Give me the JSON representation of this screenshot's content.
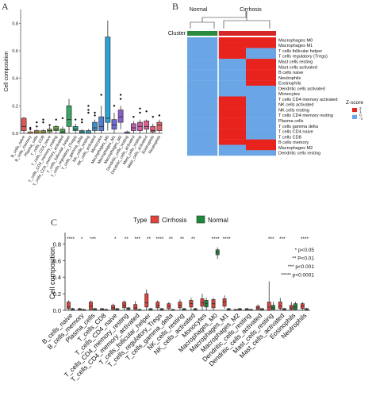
{
  "panels": {
    "a": "A",
    "b": "B",
    "c": "C"
  },
  "colors": {
    "cirrhosis": "#e0433a",
    "normal": "#1c8a3a",
    "heat_high": "#e8231e",
    "heat_low": "#6aa6e6",
    "heat_mid": "#f5f0f0",
    "cluster_normal": "#2b8a3e",
    "cluster_cirrhosis": "#d62728"
  },
  "chart_data": [
    {
      "type": "box",
      "panel": "A",
      "ylabel": "Cell composition",
      "ylim": [
        0,
        0.9
      ],
      "yticks": [
        "0.0",
        "0.2",
        "0.4",
        "0.6",
        "0.8"
      ],
      "categories": [
        "B_cells_naive",
        "B_cells_memory",
        "Plasma_cells",
        "T_cells_CD8",
        "T_cells_CD4_naive",
        "T_cells_CD4_memory_resting",
        "T_cells_CD4_memory_activated",
        "T_cells_follicular_helper",
        "T_cells_regulatory_(Tregs)",
        "T_cells_gamma_delta",
        "NK_cells_resting",
        "NK_cells_activated",
        "Monocytes",
        "Macrophages_M0",
        "Macrophages_M1",
        "Macrophages_M2",
        "Dendritic_cells_resting",
        "Dendritic_cells_activated",
        "Mast_cells_resting",
        "Mast_cells_activated",
        "Eosinophils",
        "Neutrophils"
      ],
      "box_colors": [
        "#e15759",
        "#e8a33d",
        "#c9a227",
        "#b5b53a",
        "#8fb83c",
        "#5fae3f",
        "#3da04a",
        "#3aa564",
        "#2ea887",
        "#2aa7a5",
        "#2f9fc0",
        "#3b8fd0",
        "#4f80d6",
        "#2aa2d6",
        "#6b6bd6",
        "#8b5fd1",
        "#a55bc8",
        "#c05bb8",
        "#d45aa5",
        "#e05b90",
        "#e35b78",
        "#e0626a"
      ],
      "boxes": [
        {
          "whislo": 0.0,
          "q1": 0.02,
          "med": 0.05,
          "q3": 0.11,
          "whishi": 0.12,
          "outliers": []
        },
        {
          "whislo": 0.0,
          "q1": 0.0,
          "med": 0.0,
          "q3": 0.01,
          "whishi": 0.02,
          "outliers": [
            0.03,
            0.04
          ]
        },
        {
          "whislo": 0.0,
          "q1": 0.0,
          "med": 0.01,
          "q3": 0.02,
          "whishi": 0.03,
          "outliers": [
            0.05,
            0.08
          ]
        },
        {
          "whislo": 0.0,
          "q1": 0.0,
          "med": 0.01,
          "q3": 0.02,
          "whishi": 0.03,
          "outliers": [
            0.08,
            0.1
          ]
        },
        {
          "whislo": 0.0,
          "q1": 0.01,
          "med": 0.02,
          "q3": 0.03,
          "whishi": 0.05,
          "outliers": [
            0.06
          ]
        },
        {
          "whislo": 0.0,
          "q1": 0.02,
          "med": 0.03,
          "q3": 0.05,
          "whishi": 0.06,
          "outliers": [
            0.1
          ]
        },
        {
          "whislo": 0.0,
          "q1": 0.0,
          "med": 0.01,
          "q3": 0.03,
          "whishi": 0.05,
          "outliers": [
            0.11
          ]
        },
        {
          "whislo": 0.0,
          "q1": 0.05,
          "med": 0.1,
          "q3": 0.2,
          "whishi": 0.25,
          "outliers": []
        },
        {
          "whislo": 0.0,
          "q1": 0.02,
          "med": 0.03,
          "q3": 0.05,
          "whishi": 0.07,
          "outliers": [
            0.1
          ]
        },
        {
          "whislo": 0.0,
          "q1": 0.0,
          "med": 0.01,
          "q3": 0.02,
          "whishi": 0.03,
          "outliers": [
            0.08,
            0.1
          ]
        },
        {
          "whislo": 0.0,
          "q1": 0.0,
          "med": 0.0,
          "q3": 0.02,
          "whishi": 0.03,
          "outliers": [
            0.15,
            0.17,
            0.2
          ]
        },
        {
          "whislo": 0.0,
          "q1": 0.02,
          "med": 0.04,
          "q3": 0.08,
          "whishi": 0.1,
          "outliers": [
            0.13,
            0.15
          ]
        },
        {
          "whislo": 0.0,
          "q1": 0.02,
          "med": 0.05,
          "q3": 0.12,
          "whishi": 0.2,
          "outliers": [
            0.28
          ]
        },
        {
          "whislo": 0.02,
          "q1": 0.08,
          "med": 0.11,
          "q3": 0.7,
          "whishi": 0.82,
          "outliers": []
        },
        {
          "whislo": 0.0,
          "q1": 0.03,
          "med": 0.06,
          "q3": 0.1,
          "whishi": 0.15,
          "outliers": [
            0.2
          ]
        },
        {
          "whislo": 0.03,
          "q1": 0.08,
          "med": 0.12,
          "q3": 0.17,
          "whishi": 0.2,
          "outliers": [
            0.25,
            0.28
          ]
        },
        {
          "whislo": 0.0,
          "q1": 0.0,
          "med": 0.0,
          "q3": 0.01,
          "whishi": 0.02,
          "outliers": []
        },
        {
          "whislo": 0.0,
          "q1": 0.02,
          "med": 0.04,
          "q3": 0.07,
          "whishi": 0.09,
          "outliers": [
            0.12
          ]
        },
        {
          "whislo": 0.0,
          "q1": 0.02,
          "med": 0.05,
          "q3": 0.08,
          "whishi": 0.1,
          "outliers": [
            0.15,
            0.18
          ]
        },
        {
          "whislo": 0.0,
          "q1": 0.03,
          "med": 0.05,
          "q3": 0.09,
          "whishi": 0.1,
          "outliers": [
            0.16
          ]
        },
        {
          "whislo": 0.0,
          "q1": 0.01,
          "med": 0.02,
          "q3": 0.05,
          "whishi": 0.07,
          "outliers": [
            0.12
          ]
        },
        {
          "whislo": 0.0,
          "q1": 0.02,
          "med": 0.06,
          "q3": 0.08,
          "whishi": 0.1,
          "outliers": [
            0.13
          ]
        }
      ]
    },
    {
      "type": "heatmap",
      "panel": "B",
      "column_groups": [
        "Normal",
        "Cirrhosis"
      ],
      "annotation_label": "Cluster",
      "legend_title": "Z-score",
      "legend_ticks": [
        "2",
        "1",
        "0",
        "-1"
      ],
      "rows": [
        "Macrophages M0",
        "Macrophages M1",
        "T cells follicular helper",
        "T cells regulatory (Tregs)",
        "Mast cells resting",
        "Mast cells activated",
        "B cells naive",
        "Neutrophils",
        "Eosinophils",
        "Dendritic cells activated",
        "Monocytes",
        "T cells CD4 memory activated",
        "NK cells activated",
        "NK cells resting",
        "T cells CD4 memory resting",
        "Plasma cells",
        "T cells gamma delta",
        "T cells CD4 naive",
        "T cells CD8",
        "B cells memory",
        "Macrophages M2",
        "Dendritic cells resting"
      ],
      "row_zscore_normal": [
        -1,
        -1,
        -1,
        -1,
        -1,
        -1,
        -1,
        -1,
        -1,
        -1,
        -1,
        -1,
        -1,
        -1,
        -1,
        -1,
        -1,
        -1,
        -1,
        -1,
        -1,
        -1
      ],
      "row_zscore_cirrhosis_left": [
        2,
        2,
        2,
        2,
        -1,
        -1,
        -1,
        -1,
        -1,
        -1,
        -1,
        2,
        2,
        2,
        2,
        2,
        2,
        2,
        2,
        2,
        -1,
        -1
      ],
      "row_zscore_cirrhosis_right": [
        2,
        2,
        -1,
        -1,
        2,
        2,
        2,
        2,
        2,
        -1,
        -1,
        -1,
        -1,
        -1,
        -1,
        -1,
        -1,
        -1,
        -1,
        2,
        2,
        -1
      ]
    },
    {
      "type": "box",
      "panel": "C",
      "ylabel": "Cell composition",
      "ylim": [
        0,
        0.9
      ],
      "yticks": [
        "0.0",
        "0.2",
        "0.4",
        "0.6",
        "0.8"
      ],
      "legend_title": "Type",
      "series": [
        {
          "name": "Cirrhosis"
        },
        {
          "name": "Normal"
        }
      ],
      "categories": [
        "B_cells_naive",
        "B_cells_memory",
        "Plasma_cells",
        "T_cells_CD8",
        "T_cells_CD4_naive",
        "T_cells_CD4_memory_resting",
        "T_cells_CD4_memory_activated",
        "T_cells_follicular_helper",
        "T_cells_regulatory_Tregs",
        "T_cells_gamma_delta",
        "NK_cells_resting",
        "NK_cells_activated",
        "Monocytes",
        "Macrophages_M0",
        "Macrophages_M1",
        "Macrophages_M2",
        "Dendritic_cells_resting",
        "Dendritic_cells_activated",
        "Mast_cells_resting",
        "Mast_cells_activated",
        "Eosinophils",
        "Neutrophils"
      ],
      "significance": [
        "****",
        "*",
        "***",
        "",
        "*",
        "**",
        "***",
        "**",
        "****",
        "**",
        "**",
        "**",
        "",
        "****",
        "****",
        "",
        "",
        "",
        "***",
        "***",
        "",
        "****"
      ],
      "sig_legend": [
        "* p<0.05",
        "** P<0.01",
        "*** p<0.001",
        "***** p<0.0001"
      ],
      "cirrhosis_boxes": [
        {
          "whislo": 0.0,
          "q1": 0.02,
          "med": 0.04,
          "q3": 0.1,
          "whishi": 0.12
        },
        {
          "whislo": 0.0,
          "q1": 0.0,
          "med": 0.01,
          "q3": 0.02,
          "whishi": 0.03
        },
        {
          "whislo": 0.0,
          "q1": 0.01,
          "med": 0.05,
          "q3": 0.1,
          "whishi": 0.12
        },
        {
          "whislo": 0.0,
          "q1": 0.0,
          "med": 0.01,
          "q3": 0.02,
          "whishi": 0.03
        },
        {
          "whislo": 0.0,
          "q1": 0.01,
          "med": 0.03,
          "q3": 0.06,
          "whishi": 0.08
        },
        {
          "whislo": 0.0,
          "q1": 0.03,
          "med": 0.06,
          "q3": 0.1,
          "whishi": 0.12
        },
        {
          "whislo": 0.0,
          "q1": 0.01,
          "med": 0.03,
          "q3": 0.07,
          "whishi": 0.11
        },
        {
          "whislo": 0.0,
          "q1": 0.04,
          "med": 0.09,
          "q3": 0.2,
          "whishi": 0.25
        },
        {
          "whislo": 0.0,
          "q1": 0.03,
          "med": 0.06,
          "q3": 0.1,
          "whishi": 0.12
        },
        {
          "whislo": 0.0,
          "q1": 0.02,
          "med": 0.05,
          "q3": 0.08,
          "whishi": 0.1
        },
        {
          "whislo": 0.0,
          "q1": 0.03,
          "med": 0.06,
          "q3": 0.1,
          "whishi": 0.13
        },
        {
          "whislo": 0.0,
          "q1": 0.04,
          "med": 0.08,
          "q3": 0.12,
          "whishi": 0.15
        },
        {
          "whislo": 0.0,
          "q1": 0.05,
          "med": 0.09,
          "q3": 0.14,
          "whishi": 0.2
        },
        {
          "whislo": 0.0,
          "q1": 0.03,
          "med": 0.08,
          "q3": 0.13,
          "whishi": 0.15
        },
        {
          "whislo": 0.02,
          "q1": 0.05,
          "med": 0.1,
          "q3": 0.14,
          "whishi": 0.18
        },
        {
          "whislo": 0.0,
          "q1": 0.0,
          "med": 0.0,
          "q3": 0.01,
          "whishi": 0.02
        },
        {
          "whislo": 0.0,
          "q1": 0.0,
          "med": 0.01,
          "q3": 0.02,
          "whishi": 0.03
        },
        {
          "whislo": 0.0,
          "q1": 0.01,
          "med": 0.03,
          "q3": 0.05,
          "whishi": 0.07
        },
        {
          "whislo": 0.0,
          "q1": 0.0,
          "med": 0.04,
          "q3": 0.1,
          "whishi": 0.35
        },
        {
          "whislo": 0.0,
          "q1": 0.02,
          "med": 0.05,
          "q3": 0.1,
          "whishi": 0.15
        },
        {
          "whislo": 0.0,
          "q1": 0.01,
          "med": 0.03,
          "q3": 0.06,
          "whishi": 0.1
        },
        {
          "whislo": 0.0,
          "q1": 0.02,
          "med": 0.05,
          "q3": 0.08,
          "whishi": 0.1
        }
      ],
      "normal_boxes": [
        {
          "whislo": 0.0,
          "q1": 0.0,
          "med": 0.01,
          "q3": 0.02,
          "whishi": 0.03
        },
        {
          "whislo": 0.0,
          "q1": 0.0,
          "med": 0.0,
          "q3": 0.01,
          "whishi": 0.02
        },
        {
          "whislo": 0.0,
          "q1": 0.0,
          "med": 0.01,
          "q3": 0.02,
          "whishi": 0.03
        },
        {
          "whislo": 0.0,
          "q1": 0.0,
          "med": 0.0,
          "q3": 0.01,
          "whishi": 0.02
        },
        {
          "whislo": 0.0,
          "q1": 0.0,
          "med": 0.01,
          "q3": 0.02,
          "whishi": 0.03
        },
        {
          "whislo": 0.0,
          "q1": 0.01,
          "med": 0.02,
          "q3": 0.03,
          "whishi": 0.04
        },
        {
          "whislo": 0.0,
          "q1": 0.0,
          "med": 0.0,
          "q3": 0.01,
          "whishi": 0.02
        },
        {
          "whislo": 0.0,
          "q1": 0.0,
          "med": 0.01,
          "q3": 0.02,
          "whishi": 0.03
        },
        {
          "whislo": 0.0,
          "q1": 0.0,
          "med": 0.01,
          "q3": 0.02,
          "whishi": 0.03
        },
        {
          "whislo": 0.0,
          "q1": 0.0,
          "med": 0.0,
          "q3": 0.01,
          "whishi": 0.02
        },
        {
          "whislo": 0.0,
          "q1": 0.0,
          "med": 0.01,
          "q3": 0.02,
          "whishi": 0.03
        },
        {
          "whislo": 0.0,
          "q1": 0.0,
          "med": 0.01,
          "q3": 0.02,
          "whishi": 0.03
        },
        {
          "whislo": 0.0,
          "q1": 0.04,
          "med": 0.08,
          "q3": 0.12,
          "whishi": 0.15
        },
        {
          "whislo": 0.62,
          "q1": 0.67,
          "med": 0.7,
          "q3": 0.73,
          "whishi": 0.76
        },
        {
          "whislo": 0.0,
          "q1": 0.0,
          "med": 0.01,
          "q3": 0.02,
          "whishi": 0.03
        },
        {
          "whislo": 0.0,
          "q1": 0.0,
          "med": 0.01,
          "q3": 0.02,
          "whishi": 0.03
        },
        {
          "whislo": 0.0,
          "q1": 0.0,
          "med": 0.0,
          "q3": 0.01,
          "whishi": 0.02
        },
        {
          "whislo": 0.0,
          "q1": 0.0,
          "med": 0.01,
          "q3": 0.02,
          "whishi": 0.03
        },
        {
          "whislo": 0.0,
          "q1": 0.01,
          "med": 0.03,
          "q3": 0.06,
          "whishi": 0.1
        },
        {
          "whislo": 0.0,
          "q1": 0.0,
          "med": 0.01,
          "q3": 0.02,
          "whishi": 0.03
        },
        {
          "whislo": 0.0,
          "q1": 0.01,
          "med": 0.04,
          "q3": 0.08,
          "whishi": 0.1
        },
        {
          "whislo": 0.0,
          "q1": 0.0,
          "med": 0.01,
          "q3": 0.02,
          "whishi": 0.03
        }
      ]
    }
  ]
}
